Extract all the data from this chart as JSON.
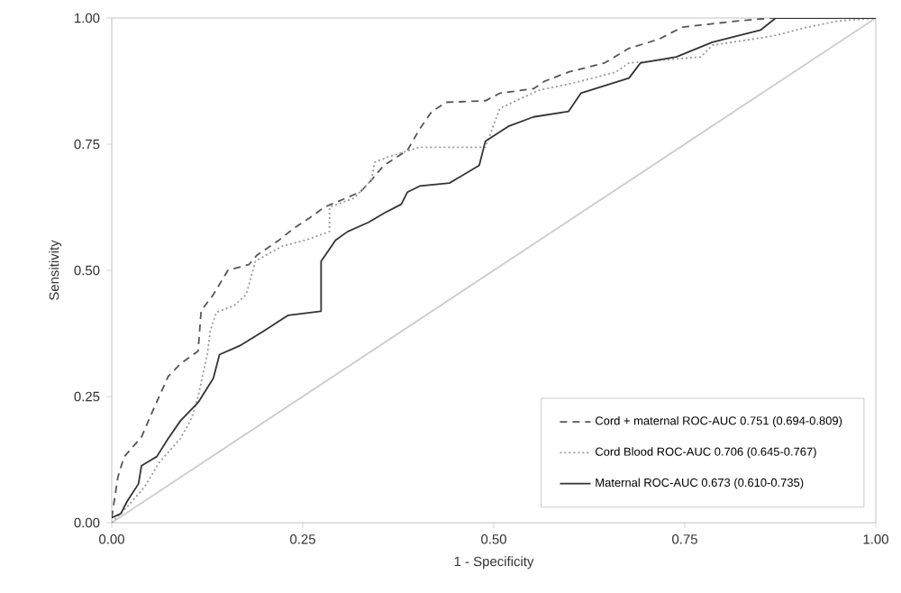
{
  "chart_data": {
    "type": "line",
    "xlabel": "1 - Specificity",
    "ylabel": "Sensitivity",
    "xlim": [
      0,
      1
    ],
    "ylim": [
      0,
      1
    ],
    "xticks": [
      {
        "value": 0,
        "label": "0.00"
      },
      {
        "value": 0.25,
        "label": "0.25"
      },
      {
        "value": 0.5,
        "label": "0.50"
      },
      {
        "value": 0.75,
        "label": "0.75"
      },
      {
        "value": 1,
        "label": "1.00"
      }
    ],
    "yticks": [
      {
        "value": 0,
        "label": "0.00"
      },
      {
        "value": 0.25,
        "label": "0.25"
      },
      {
        "value": 0.5,
        "label": "0.50"
      },
      {
        "value": 0.75,
        "label": "0.75"
      },
      {
        "value": 1,
        "label": "1.00"
      }
    ],
    "grid": false,
    "legend": "bottom right",
    "marker": "none",
    "series": [
      {
        "name": "Cord + maternal ROC-AUC 0.751 (0.694-0.809)",
        "color": "#555555",
        "line_style": "dashed",
        "x": [
          0,
          0.008,
          0.016,
          0.039,
          0.055,
          0.074,
          0.09,
          0.113,
          0.117,
          0.133,
          0.152,
          0.18,
          0.19,
          0.219,
          0.238,
          0.262,
          0.278,
          0.325,
          0.34,
          0.356,
          0.387,
          0.403,
          0.419,
          0.438,
          0.489,
          0.508,
          0.552,
          0.567,
          0.598,
          0.645,
          0.677,
          0.716,
          0.747,
          0.818,
          0.864,
          1
        ],
        "values": [
          0.01,
          0.09,
          0.13,
          0.17,
          0.226,
          0.29,
          0.315,
          0.34,
          0.42,
          0.452,
          0.5,
          0.512,
          0.53,
          0.56,
          0.583,
          0.607,
          0.625,
          0.655,
          0.679,
          0.708,
          0.738,
          0.78,
          0.815,
          0.833,
          0.836,
          0.851,
          0.86,
          0.875,
          0.893,
          0.911,
          0.94,
          0.958,
          0.982,
          0.994,
          1,
          1
        ]
      },
      {
        "name": "Cord Blood ROC-AUC 0.706 (0.645-0.767)",
        "color": "#999999",
        "line_style": "dotted",
        "x": [
          0,
          0.023,
          0.043,
          0.062,
          0.09,
          0.105,
          0.113,
          0.125,
          0.129,
          0.137,
          0.16,
          0.176,
          0.188,
          0.223,
          0.254,
          0.285,
          0.285,
          0.317,
          0.34,
          0.344,
          0.364,
          0.403,
          0.489,
          0.508,
          0.559,
          0.598,
          0.66,
          0.677,
          0.771,
          0.786,
          0.864,
          0.911,
          0.95,
          1
        ],
        "values": [
          0,
          0.036,
          0.071,
          0.119,
          0.167,
          0.208,
          0.25,
          0.333,
          0.381,
          0.417,
          0.43,
          0.452,
          0.518,
          0.548,
          0.56,
          0.577,
          0.625,
          0.643,
          0.679,
          0.714,
          0.726,
          0.744,
          0.744,
          0.821,
          0.857,
          0.869,
          0.893,
          0.911,
          0.923,
          0.946,
          0.964,
          0.982,
          0.994,
          1
        ]
      },
      {
        "name": "Maternal ROC-AUC 0.673 (0.610-0.735)",
        "color": "#333333",
        "line_style": "solid",
        "x": [
          0,
          0.012,
          0.02,
          0.035,
          0.039,
          0.059,
          0.074,
          0.09,
          0.113,
          0.133,
          0.141,
          0.168,
          0.2,
          0.231,
          0.274,
          0.274,
          0.293,
          0.309,
          0.336,
          0.356,
          0.379,
          0.387,
          0.403,
          0.442,
          0.481,
          0.489,
          0.52,
          0.552,
          0.598,
          0.614,
          0.677,
          0.692,
          0.739,
          0.786,
          0.849,
          0.869,
          1
        ],
        "values": [
          0.01,
          0.018,
          0.042,
          0.077,
          0.113,
          0.131,
          0.167,
          0.202,
          0.238,
          0.286,
          0.333,
          0.351,
          0.381,
          0.411,
          0.419,
          0.518,
          0.56,
          0.577,
          0.595,
          0.613,
          0.631,
          0.655,
          0.667,
          0.673,
          0.708,
          0.756,
          0.786,
          0.804,
          0.815,
          0.851,
          0.881,
          0.911,
          0.923,
          0.952,
          0.976,
          1,
          1
        ]
      },
      {
        "color": "#cccccc",
        "line_style": "solid",
        "x": [
          0,
          1
        ],
        "values": [
          0,
          1
        ]
      }
    ]
  }
}
